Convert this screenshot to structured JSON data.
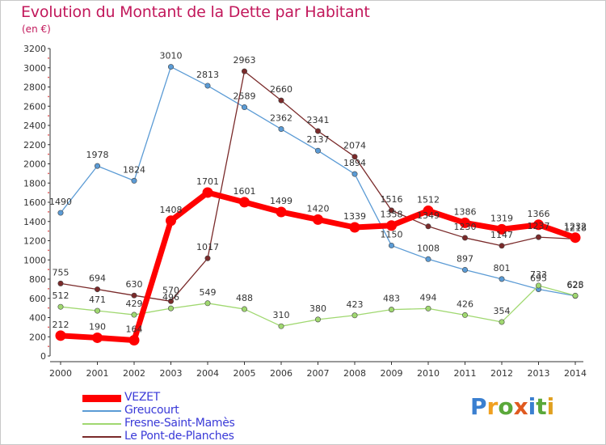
{
  "header": {
    "title": "Evolution du Montant de la Dette par Habitant",
    "unit": "(en €)"
  },
  "brand": {
    "logo_letters": [
      "P",
      "r",
      "o",
      "x",
      "i",
      "t",
      "i"
    ],
    "logo_colors": [
      "#3a7fd0",
      "#f0a020",
      "#5aa83a",
      "#e05a20",
      "#3a7fd0",
      "#5aa83a",
      "#e0a020"
    ]
  },
  "chart_data": {
    "type": "line",
    "title": "Evolution du Montant de la Dette par Habitant",
    "ylabel": "(en €)",
    "xlabel": "",
    "ylim": [
      0,
      3200
    ],
    "yticks": [
      0,
      200,
      400,
      600,
      800,
      1000,
      1200,
      1400,
      1600,
      1800,
      2000,
      2200,
      2400,
      2600,
      2800,
      3000,
      3200
    ],
    "grid": false,
    "legend": "bottom-left",
    "x": [
      "2000",
      "2001",
      "2002",
      "2003",
      "2004",
      "2005",
      "2006",
      "2007",
      "2008",
      "2009",
      "2010",
      "2011",
      "2012",
      "2013",
      "2014"
    ],
    "series": [
      {
        "name": "VEZET",
        "color": "#ff0000",
        "labels": [
          "212",
          "190",
          "164",
          "1408",
          "1701",
          "1601",
          "1499",
          "1420",
          "1339",
          "1358",
          "1512",
          "1386",
          "1319",
          "1366",
          "1232"
        ],
        "values": [
          212,
          190,
          164,
          1408,
          1701,
          1601,
          1499,
          1420,
          1339,
          1358,
          1512,
          1386,
          1319,
          1366,
          1232
        ]
      },
      {
        "name": "Greucourt",
        "color": "#5b9bd5",
        "labels": [
          "1490",
          "1978",
          "1824",
          "3010",
          "2813",
          "2589",
          "2362",
          "2137",
          "1894",
          "1150",
          "1008",
          "897",
          "801",
          "695",
          "625"
        ],
        "values": [
          1490,
          1978,
          1824,
          3010,
          2813,
          2589,
          2362,
          2137,
          1894,
          1150,
          1008,
          897,
          801,
          695,
          625
        ]
      },
      {
        "name": "Fresne-Saint-Mamès",
        "color": "#a0d870",
        "labels": [
          "512",
          "471",
          "429",
          "496",
          "549",
          "488",
          "310",
          "380",
          "423",
          "483",
          "494",
          "426",
          "354",
          "733",
          "628"
        ],
        "values": [
          512,
          471,
          429,
          496,
          549,
          488,
          310,
          380,
          423,
          483,
          494,
          426,
          354,
          733,
          628
        ]
      },
      {
        "name": "Le Pont-de-Planches",
        "color": "#7a2a2a",
        "labels": [
          "755",
          "694",
          "630",
          "570",
          "1017",
          "2963",
          "2660",
          "2341",
          "2074",
          "1516",
          "1349",
          "1230",
          "1147",
          "1237",
          "1218"
        ],
        "values": [
          755,
          694,
          630,
          570,
          1017,
          2963,
          2660,
          2341,
          2074,
          1516,
          1349,
          1230,
          1147,
          1237,
          1218
        ]
      }
    ]
  }
}
